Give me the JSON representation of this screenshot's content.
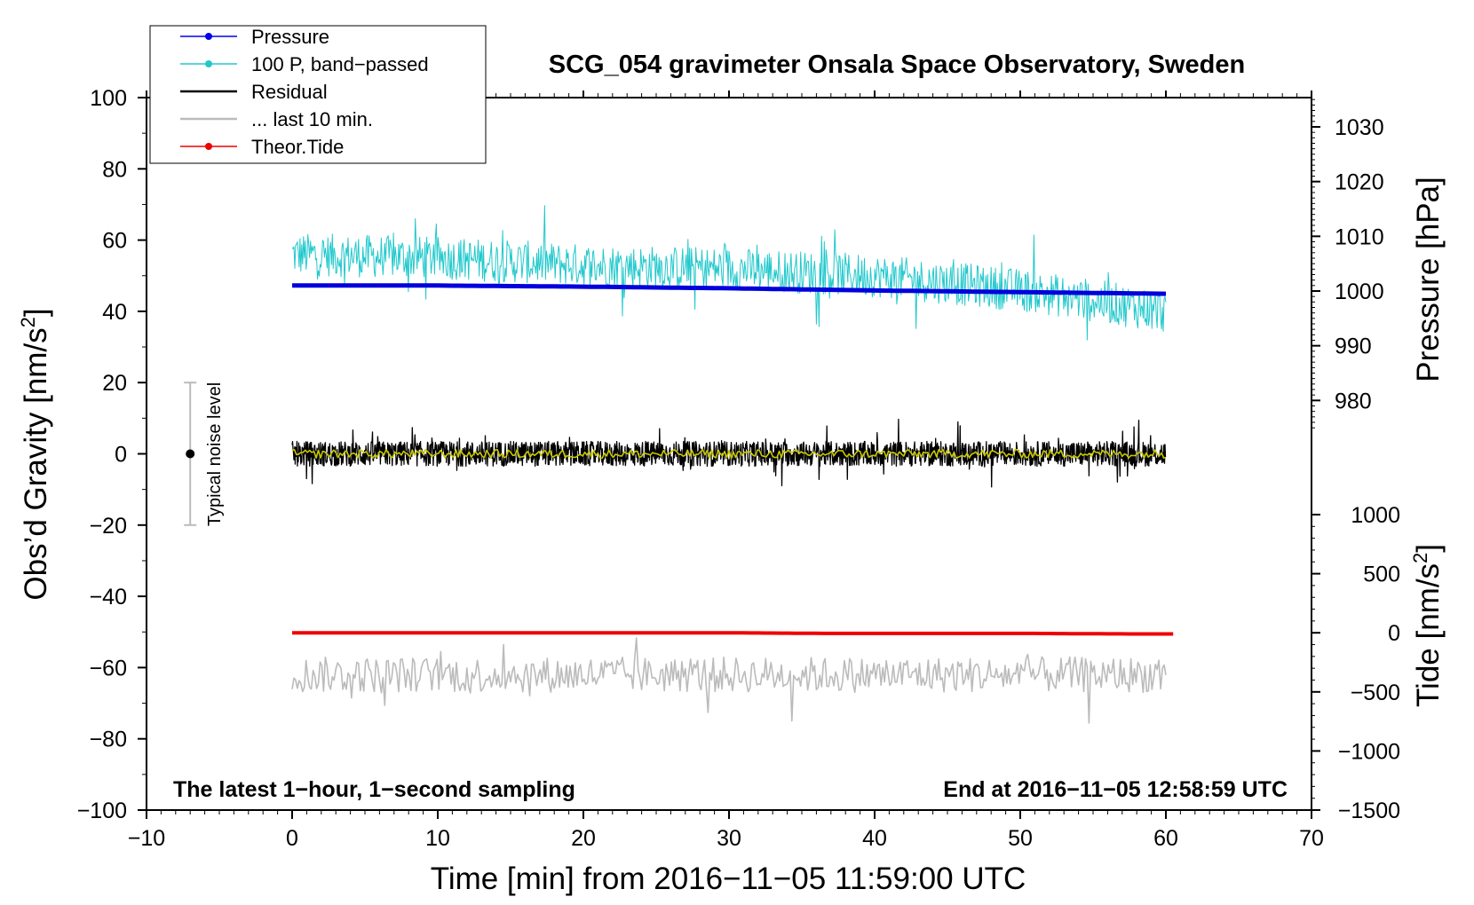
{
  "chart_data": {
    "type": "line",
    "title": "SCG_054 gravimeter Onsala Space Observatory, Sweden",
    "xlabel": "Time [min] from 2016−11−05 11:59:00 UTC",
    "ylabel_left": "Obs’d Gravity [nm/s",
    "ylabel_left_sup": "2",
    "ylabel_left_close": "]",
    "ylabel_right_pressure": "Pressure [hPa]",
    "ylabel_right_tide": "Tide [nm/s",
    "ylabel_right_tide_sup": "2",
    "ylabel_right_tide_close": "]",
    "xlim": [
      -10,
      70
    ],
    "ylim": [
      -100,
      100
    ],
    "pressure_axis_range": [
      970,
      1035
    ],
    "tide_axis_range": [
      -1500,
      1500
    ],
    "x_ticks": [
      "−10",
      "0",
      "10",
      "20",
      "30",
      "40",
      "50",
      "60",
      "70"
    ],
    "x_tick_values": [
      -10,
      0,
      10,
      20,
      30,
      40,
      50,
      60,
      70
    ],
    "y_ticks": [
      "100",
      "80",
      "60",
      "40",
      "20",
      "0",
      "−20",
      "−40",
      "−60",
      "−80",
      "−100"
    ],
    "y_tick_values": [
      100,
      80,
      60,
      40,
      20,
      0,
      -20,
      -40,
      -60,
      -80,
      -100
    ],
    "pressure_ticks": [
      "1030",
      "1020",
      "1010",
      "1000",
      "990",
      "980"
    ],
    "pressure_tick_values": [
      1030,
      1020,
      1010,
      1000,
      990,
      980
    ],
    "tide_ticks": [
      "1000",
      "500",
      "0",
      "−500",
      "−1000",
      "−1500"
    ],
    "tide_tick_values": [
      1000,
      500,
      0,
      -500,
      -1000,
      -1500
    ],
    "legend": [
      {
        "label": "Pressure",
        "color": "#0000ee",
        "marker": true
      },
      {
        "label": "100 P, band−passed",
        "color": "#20c8cc",
        "marker": true
      },
      {
        "label": "Residual",
        "color": "#000000",
        "marker": false
      },
      {
        "label": "... last 10 min.",
        "color": "#bbbbbb",
        "marker": false
      },
      {
        "label": "Theor.Tide",
        "color": "#ee0000",
        "marker": true
      }
    ],
    "legend_position": "top-left",
    "grid": false,
    "series": [
      {
        "name": "Pressure",
        "axis": "pressure",
        "color": "#0000dd",
        "x": [
          0,
          10,
          20,
          30,
          40,
          50,
          60
        ],
        "y": [
          1001.0,
          1001.0,
          1000.8,
          1000.5,
          1000.1,
          999.8,
          999.5
        ]
      },
      {
        "name": "100 P, band−passed",
        "axis": "gravity",
        "color": "#20c8cc",
        "x": [
          0,
          10,
          20,
          30,
          40,
          50,
          60
        ],
        "y": [
          56,
          55,
          53,
          52,
          50,
          46,
          40
        ],
        "noise_amplitude": 6
      },
      {
        "name": "Residual",
        "axis": "gravity",
        "color": "#000000",
        "x": [
          0,
          10,
          20,
          30,
          40,
          50,
          60
        ],
        "y": [
          0,
          0,
          0,
          0,
          0,
          0,
          0
        ],
        "noise_amplitude": 3.5
      },
      {
        "name": "smoothed residual",
        "axis": "gravity",
        "color": "#c8c800",
        "x": [
          0,
          10,
          20,
          30,
          40,
          50,
          60
        ],
        "y": [
          0,
          0,
          0,
          0,
          0,
          0,
          0
        ],
        "noise_amplitude": 1.2
      },
      {
        "name": "... last 10 min.",
        "axis": "gravity",
        "color": "#bbbbbb",
        "x": [
          0,
          10,
          20,
          30,
          40,
          50,
          60
        ],
        "y": [
          -62,
          -62,
          -62,
          -62,
          -62,
          -62,
          -62
        ],
        "noise_amplitude": 5
      },
      {
        "name": "Theor.Tide",
        "axis": "tide",
        "color": "#ee0000",
        "x": [
          0,
          10,
          20,
          30,
          36.5,
          40,
          50,
          58,
          60.5
        ],
        "y": [
          0,
          0,
          0,
          0,
          -5,
          -5,
          -5,
          -10,
          -10
        ]
      }
    ],
    "noise_bar": {
      "label": "Typical noise level",
      "x": -7,
      "center": 0,
      "low": -20,
      "high": 20
    },
    "annotation_left": "The latest 1−hour, 1−second sampling",
    "annotation_right": "End at 2016−11−05 12:58:59 UTC"
  }
}
